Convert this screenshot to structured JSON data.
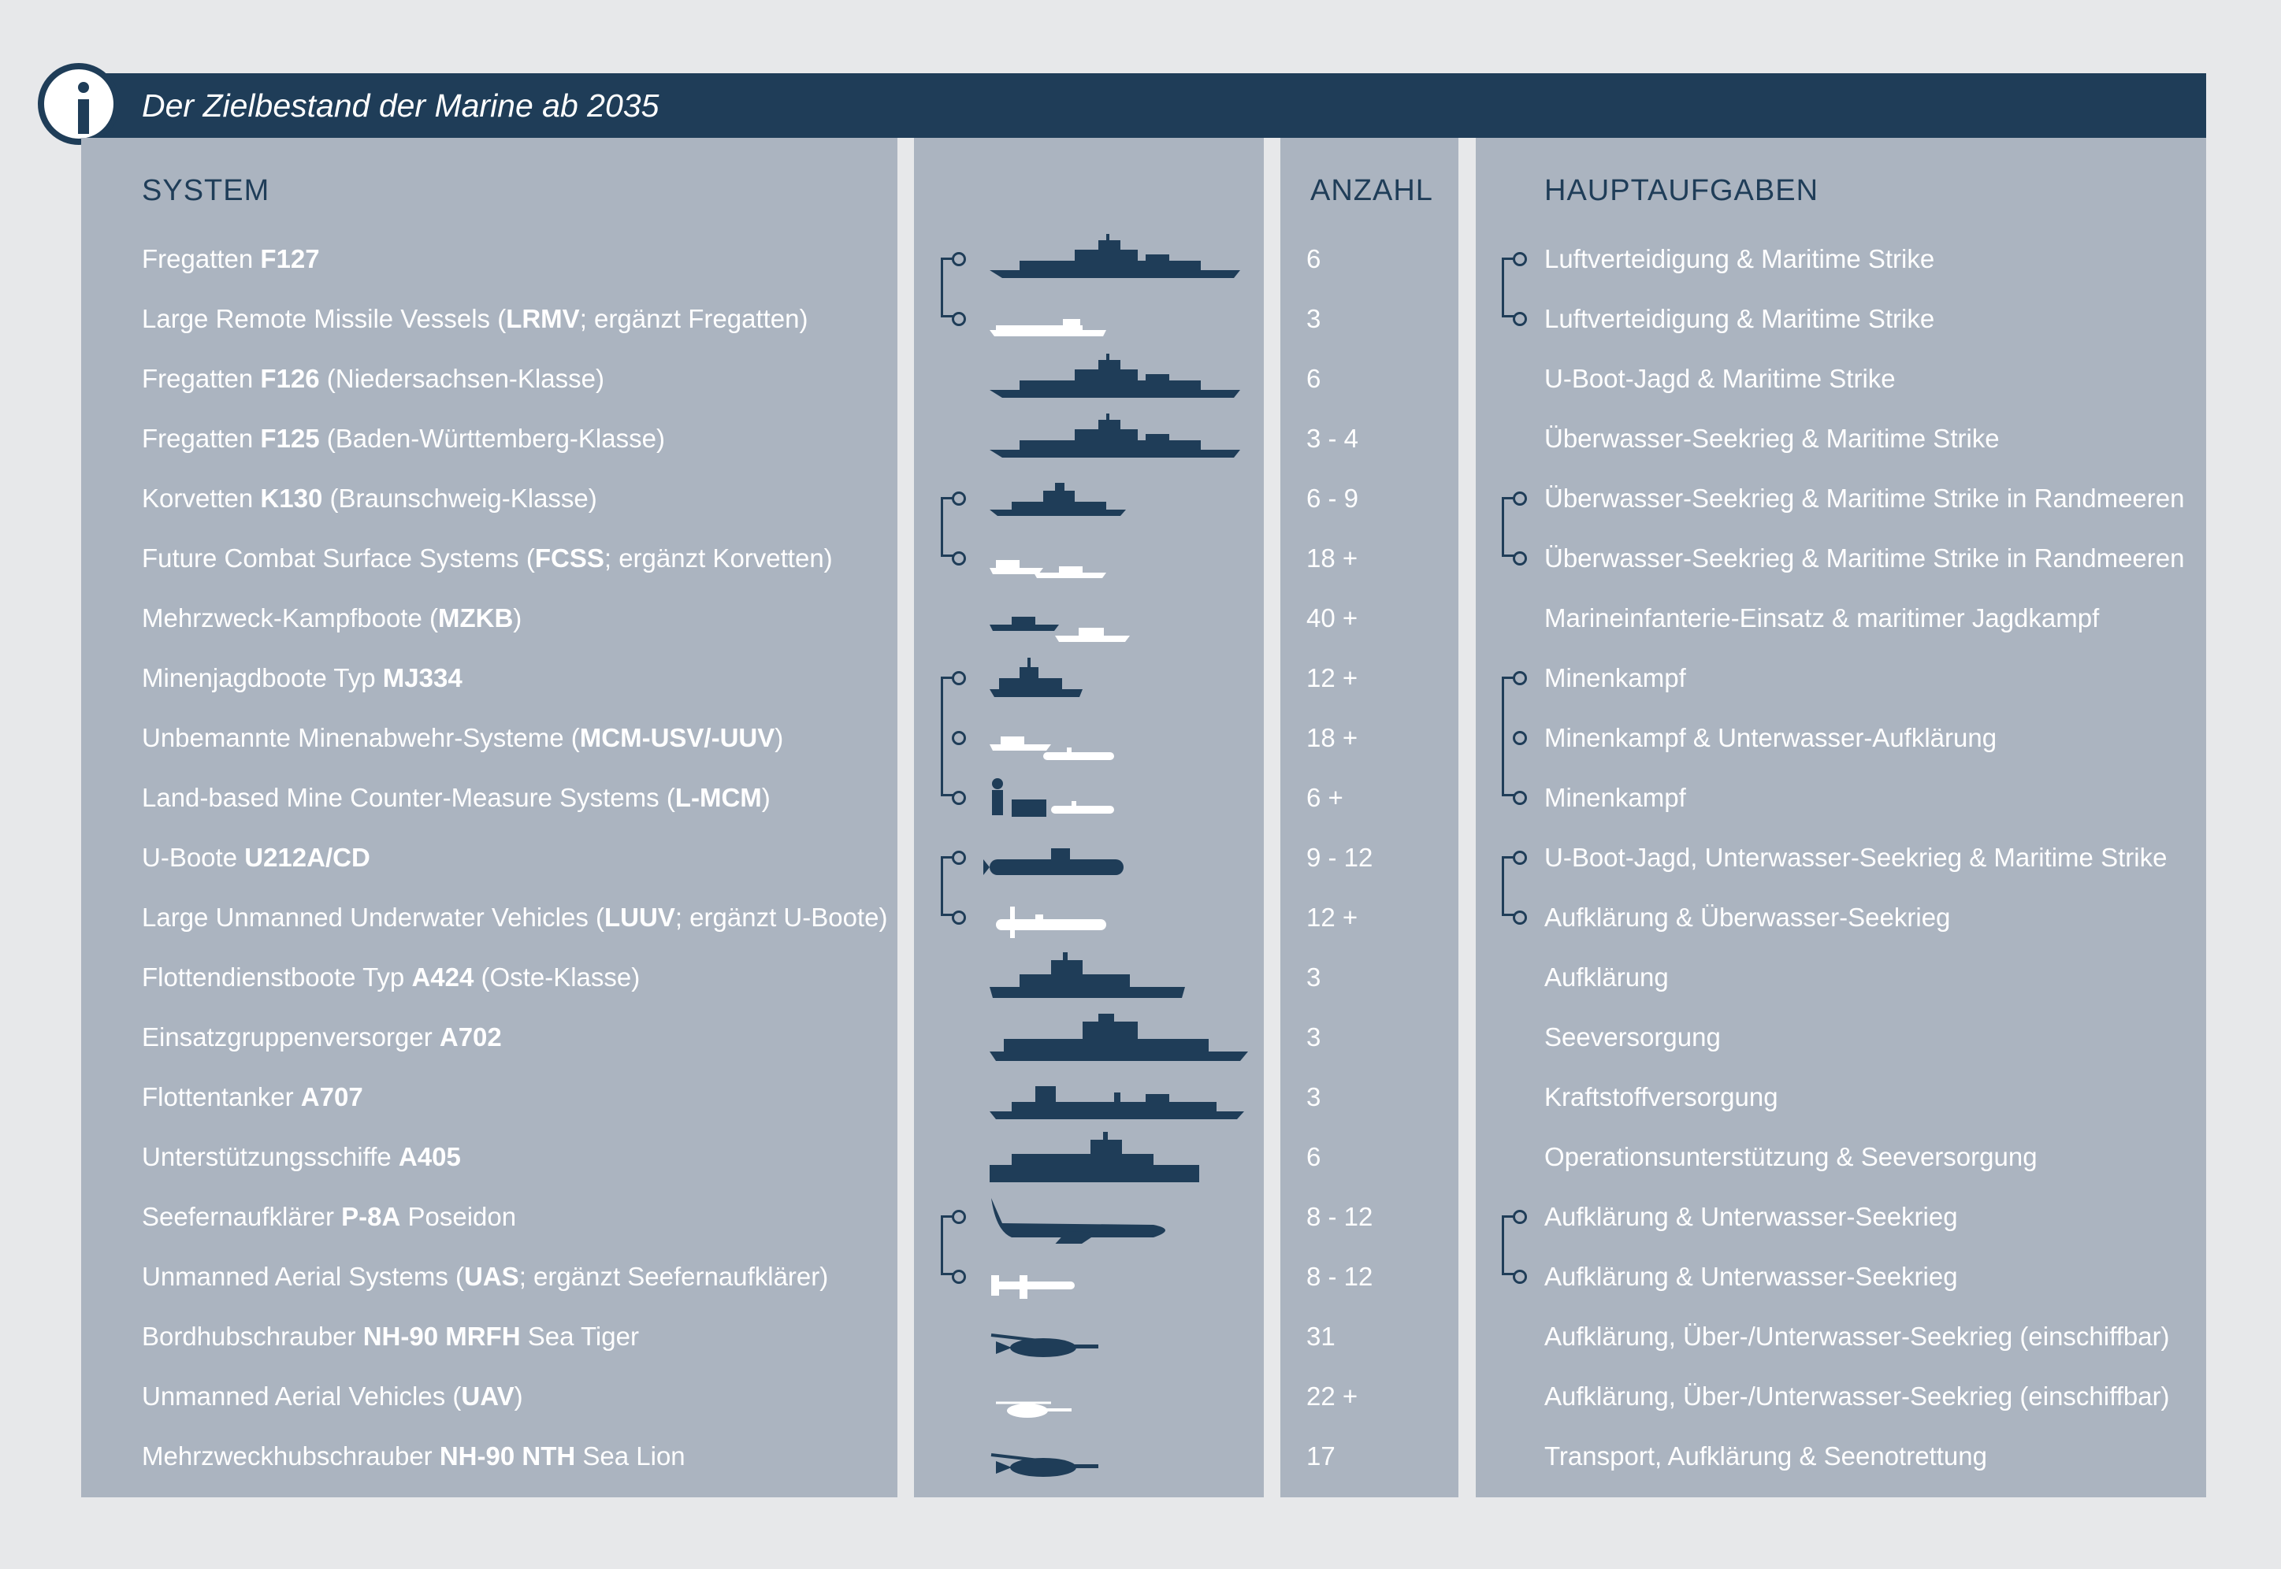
{
  "title": "Der Zielbestand der Marine ab 2035",
  "info_icon": "info-icon",
  "headers": {
    "system": "SYSTEM",
    "count": "ANZAHL",
    "tasks": "HAUPTAUFGABEN"
  },
  "colors": {
    "navy": "#1f3d58",
    "panel": "#abb4c0",
    "background": "#e7e8ea"
  },
  "rows": [
    {
      "pre": "Fregatten ",
      "bold": "F127",
      "post": "",
      "count": "6",
      "task": "Luftverteidigung & Maritime Strike",
      "icon": "frigate-icon"
    },
    {
      "pre": "Large Remote Missile Vessels (",
      "bold": "LRMV",
      "post": "; ergänzt Fregatten)",
      "count": "3",
      "task": "Luftverteidigung & Maritime Strike",
      "icon": "unmanned-vessel-icon"
    },
    {
      "pre": "Fregatten ",
      "bold": "F126",
      "post": " (Niedersachsen-Klasse)",
      "count": "6",
      "task": "U-Boot-Jagd & Maritime Strike",
      "icon": "frigate-icon"
    },
    {
      "pre": "Fregatten ",
      "bold": "F125",
      "post": " (Baden-Württemberg-Klasse)",
      "count": "3 - 4",
      "task": "Überwasser-Seekrieg & Maritime Strike",
      "icon": "frigate-icon"
    },
    {
      "pre": "Korvetten ",
      "bold": "K130",
      "post": " (Braunschweig-Klasse)",
      "count": "6 - 9",
      "task": "Überwasser-Seekrieg & Maritime Strike in Randmeeren",
      "icon": "corvette-icon"
    },
    {
      "pre": "Future Combat Surface Systems (",
      "bold": "FCSS",
      "post": "; ergänzt Korvetten)",
      "count": "18 +",
      "task": "Überwasser-Seekrieg & Maritime Strike in Randmeeren",
      "icon": "surface-drone-icon"
    },
    {
      "pre": "Mehrzweck-Kampfboote (",
      "bold": "MZKB",
      "post": ")",
      "count": "40 +",
      "task": "Marineinfanterie-Einsatz & maritimer Jagdkampf",
      "icon": "combat-boat-icon"
    },
    {
      "pre": "Minenjagdboote Typ ",
      "bold": "MJ334",
      "post": "",
      "count": "12 +",
      "task": "Minenkampf",
      "icon": "minehunter-icon"
    },
    {
      "pre": "Unbemannte Minenabwehr-Systeme (",
      "bold": "MCM-USV/-UUV",
      "post": ")",
      "count": "18 +",
      "task": "Minenkampf & Unterwasser-Aufklärung",
      "icon": "mcm-drone-icon"
    },
    {
      "pre": "Land-based Mine Counter-Measure Systems (",
      "bold": "L-MCM",
      "post": ")",
      "count": "6 +",
      "task": "Minenkampf",
      "icon": "land-mcm-icon"
    },
    {
      "pre": "U-Boote ",
      "bold": "U212A/CD",
      "post": "",
      "count": "9 - 12",
      "task": "U-Boot-Jagd, Unterwasser-Seekrieg & Maritime Strike",
      "icon": "submarine-icon"
    },
    {
      "pre": "Large Unmanned Underwater Vehicles (",
      "bold": "LUUV",
      "post": "; ergänzt U-Boote)",
      "count": "12 +",
      "task": "Aufklärung & Überwasser-Seekrieg",
      "icon": "underwater-drone-icon"
    },
    {
      "pre": "Flottendienstboote Typ ",
      "bold": "A424",
      "post": " (Oste-Klasse)",
      "count": "3",
      "task": "Aufklärung",
      "icon": "intel-ship-icon"
    },
    {
      "pre": "Einsatzgruppenversorger ",
      "bold": "A702",
      "post": "",
      "count": "3",
      "task": "Seeversorgung",
      "icon": "supply-ship-icon"
    },
    {
      "pre": "Flottentanker ",
      "bold": "A707",
      "post": "",
      "count": "3",
      "task": "Kraftstoffversorgung",
      "icon": "tanker-icon"
    },
    {
      "pre": "Unterstützungsschiffe ",
      "bold": "A405",
      "post": "",
      "count": "6",
      "task": "Operationsunterstützung & Seeversorgung",
      "icon": "support-ship-icon"
    },
    {
      "pre": "Seefernaufklärer ",
      "bold": "P-8A",
      "post": " Poseidon",
      "count": "8 - 12",
      "task": "Aufklärung & Unterwasser-Seekrieg",
      "icon": "patrol-aircraft-icon"
    },
    {
      "pre": "Unmanned Aerial Systems (",
      "bold": "UAS",
      "post": "; ergänzt Seefernaufklärer)",
      "count": "8 - 12",
      "task": "Aufklärung & Unterwasser-Seekrieg",
      "icon": "uas-drone-icon"
    },
    {
      "pre": "Bordhubschrauber ",
      "bold": "NH-90 MRFH",
      "post": " Sea Tiger",
      "count": "31",
      "task": "Aufklärung, Über-/Unterwasser-Seekrieg (einschiffbar)",
      "icon": "helicopter-icon"
    },
    {
      "pre": "Unmanned Aerial Vehicles (",
      "bold": "UAV",
      "post": ")",
      "count": "22 +",
      "task": "Aufklärung, Über-/Unterwasser-Seekrieg (einschiffbar)",
      "icon": "uav-helicopter-icon"
    },
    {
      "pre": "Mehrzweckhubschrauber ",
      "bold": "NH-90 NTH",
      "post": " Sea Lion",
      "count": "17",
      "task": "Transport, Aufklärung & Seenotrettung",
      "icon": "helicopter-icon"
    }
  ]
}
